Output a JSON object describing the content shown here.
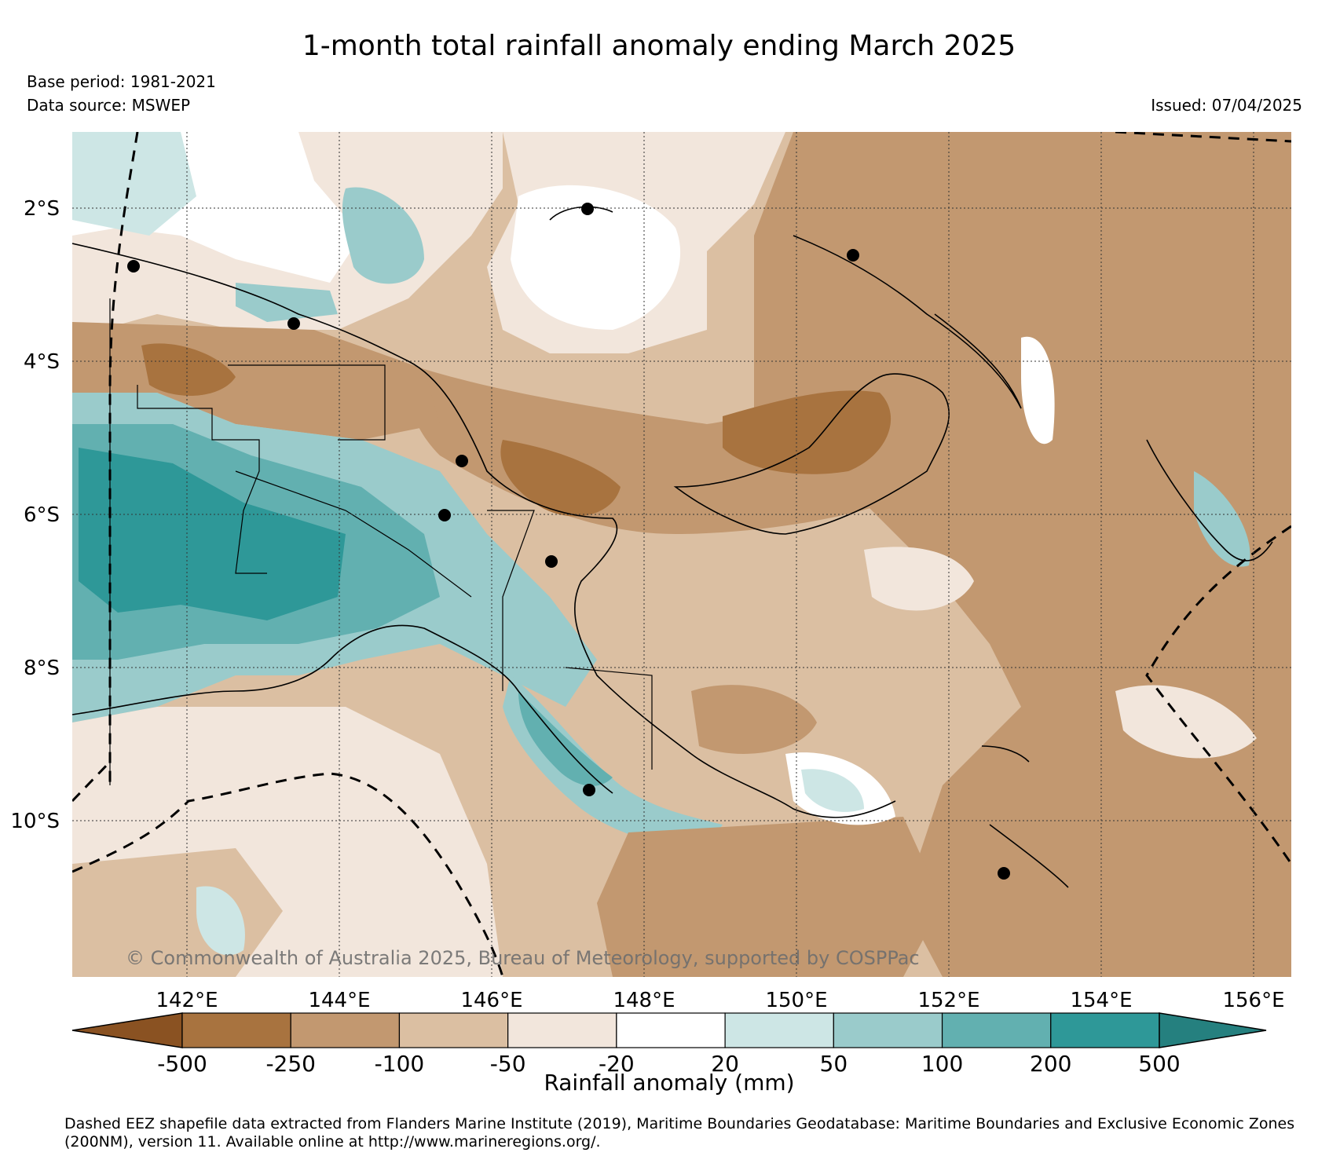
{
  "title": "1-month total rainfall anomaly ending March 2025",
  "base_period": "Base period: 1981-2021",
  "data_source": "Data source: MSWEP",
  "issued": "Issued: 07/04/2025",
  "watermark": "© Commonwealth of Australia 2025, Bureau of Meteorology, supported by COSPPac",
  "lat_labels": [
    "2°S",
    "4°S",
    "6°S",
    "8°S",
    "10°S"
  ],
  "lon_labels": [
    "142°E",
    "144°E",
    "146°E",
    "148°E",
    "150°E",
    "152°E",
    "154°E",
    "156°E"
  ],
  "colorbar": {
    "title": "Rainfall anomaly (mm)",
    "ticks": [
      "-500",
      "-250",
      "-100",
      "-50",
      "-20",
      "20",
      "50",
      "100",
      "200",
      "500"
    ],
    "colors": [
      "#8a5222",
      "#a8733f",
      "#c29870",
      "#dbbfa2",
      "#f2e6dc",
      "#ffffff",
      "#cde6e5",
      "#9acbcb",
      "#62b0b0",
      "#2e9898",
      "#25807f"
    ]
  },
  "footer": "Dashed EEZ shapefile data extracted from Flanders Marine Institute (2019), Maritime Boundaries Geodatabase: Maritime Boundaries and Exclusive Economic Zones (200NM), version 11. Available online at http://www.marineregions.org/."
}
